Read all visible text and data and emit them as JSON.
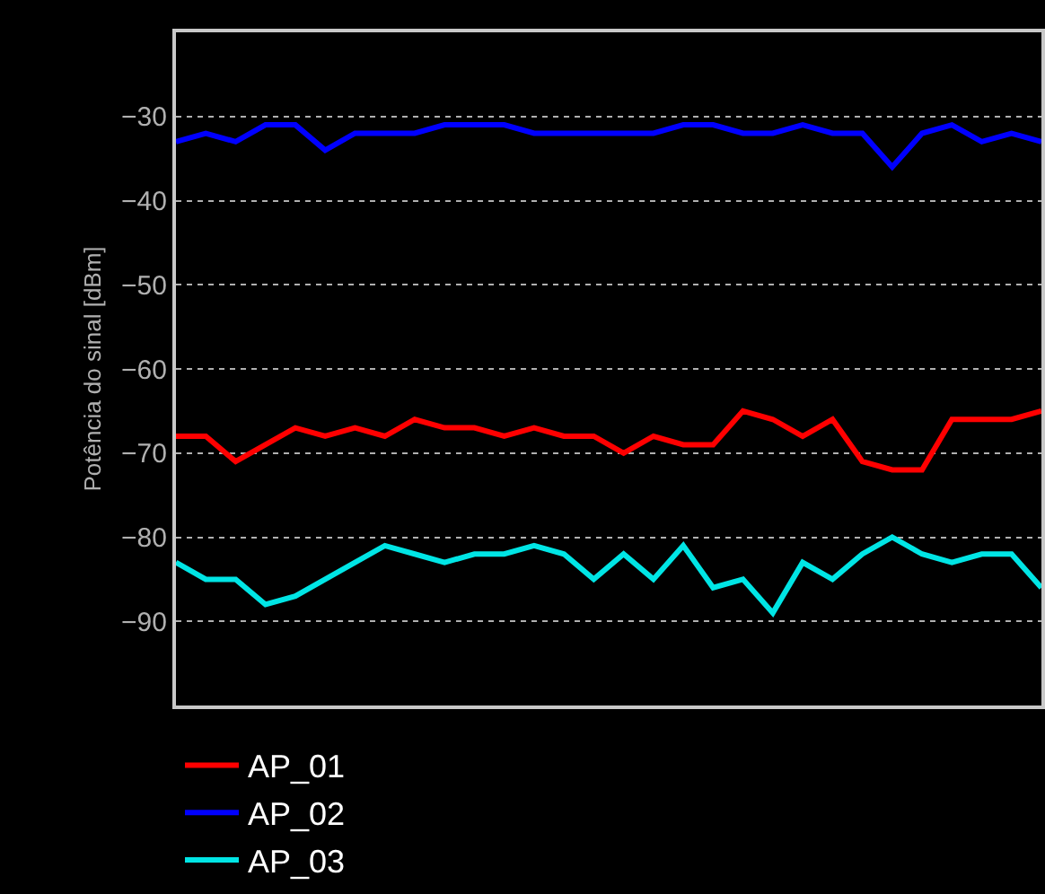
{
  "chart_data": {
    "type": "line",
    "ylabel": "Potência do sinal [dBm]",
    "categories": [
      null,
      null,
      null,
      null,
      null,
      null,
      null,
      null,
      null,
      null,
      null,
      null,
      null,
      null,
      null,
      null,
      null,
      null,
      null,
      null,
      null,
      null,
      null,
      null,
      null,
      null,
      null,
      null,
      null,
      null
    ],
    "series": [
      {
        "name": "AP_01",
        "color": "#ff0000",
        "values": [
          -68,
          -68,
          -71,
          -69,
          -67,
          -68,
          -67,
          -68,
          -66,
          -67,
          -67,
          -68,
          -67,
          -68,
          -68,
          -70,
          -68,
          -69,
          -69,
          -65,
          -66,
          -68,
          -66,
          -71,
          -72,
          -72,
          -66,
          -66,
          -66,
          -65
        ]
      },
      {
        "name": "AP_02",
        "color": "#0000ff",
        "values": [
          -33,
          -32,
          -33,
          -31,
          -31,
          -34,
          -32,
          -32,
          -32,
          -31,
          -31,
          -31,
          -32,
          -32,
          -32,
          -32,
          -32,
          -31,
          -31,
          -32,
          -32,
          -31,
          -32,
          -32,
          -36,
          -32,
          -31,
          -33,
          -32,
          -33
        ]
      },
      {
        "name": "AP_03",
        "color": "#00e5e5",
        "values": [
          -83,
          -85,
          -85,
          -88,
          -87,
          -85,
          -83,
          -81,
          -82,
          -83,
          -82,
          -82,
          -81,
          -82,
          -85,
          -82,
          -85,
          -81,
          -86,
          -85,
          -89,
          -83,
          -85,
          -82,
          -80,
          -82,
          -83,
          -82,
          -82,
          -86
        ]
      }
    ],
    "ylim": [
      -100,
      -20
    ],
    "yticks": [
      -90,
      -80,
      -70,
      -60,
      -50,
      -40,
      -30
    ],
    "grid": "y",
    "legend": "bottom",
    "marker": "none",
    "line_style": "solid",
    "tick_labels": "y"
  }
}
